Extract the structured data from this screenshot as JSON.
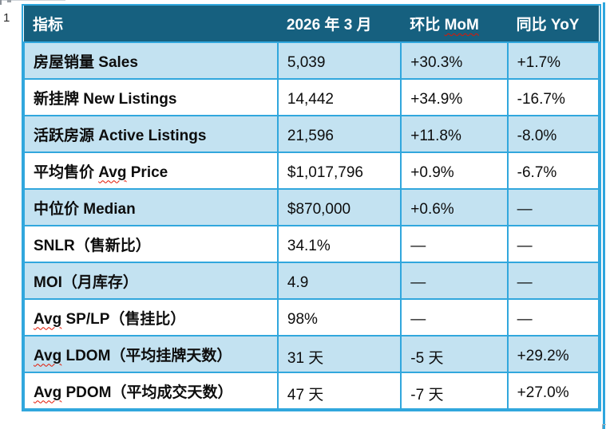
{
  "page": {
    "margin_number": "1"
  },
  "colors": {
    "header_bg": "#16607f",
    "header_text": "#ffffff",
    "row_alt_bg": "#c3e2f1",
    "row_bg": "#ffffff",
    "grid_border": "#31a7dd",
    "right_edge_strip": "#2ea6dd",
    "spellcheck_underline": "#e31400",
    "body_text": "#0d0d0d"
  },
  "table": {
    "headers": [
      {
        "pre": "指标",
        "wavy": "",
        "post": ""
      },
      {
        "pre": "2026 年 3 月",
        "wavy": "",
        "post": ""
      },
      {
        "pre": "环比 ",
        "wavy": "MoM",
        "post": ""
      },
      {
        "pre": "同比 YoY",
        "wavy": "",
        "post": ""
      }
    ],
    "rows": [
      {
        "label_pre": "房屋销量 Sales",
        "label_wavy": "",
        "label_post": "",
        "value": "5,039",
        "mom": "+30.3%",
        "yoy": "+1.7%"
      },
      {
        "label_pre": "新挂牌 New Listings",
        "label_wavy": "",
        "label_post": "",
        "value": "14,442",
        "mom": "+34.9%",
        "yoy": "-16.7%"
      },
      {
        "label_pre": "活跃房源 Active Listings",
        "label_wavy": "",
        "label_post": "",
        "value": "21,596",
        "mom": "+11.8%",
        "yoy": "-8.0%"
      },
      {
        "label_pre": "平均售价 ",
        "label_wavy": "Avg",
        "label_post": " Price",
        "value": "$1,017,796",
        "mom": "+0.9%",
        "yoy": "-6.7%"
      },
      {
        "label_pre": "中位价 Median",
        "label_wavy": "",
        "label_post": "",
        "value": "$870,000",
        "mom": "+0.6%",
        "yoy": "—"
      },
      {
        "label_pre": "SNLR（售新比）",
        "label_wavy": "",
        "label_post": "",
        "value": "34.1%",
        "mom": "—",
        "yoy": "—"
      },
      {
        "label_pre": "MOI（月库存）",
        "label_wavy": "",
        "label_post": "",
        "value": "4.9",
        "mom": "—",
        "yoy": "—"
      },
      {
        "label_pre": "",
        "label_wavy": "Avg",
        "label_post": " SP/LP（售挂比）",
        "value": "98%",
        "mom": "—",
        "yoy": "—"
      },
      {
        "label_pre": "",
        "label_wavy": "Avg",
        "label_post": " LDOM（平均挂牌天数）",
        "value": "31 天",
        "mom": "-5 天",
        "yoy": "+29.2%"
      },
      {
        "label_pre": "",
        "label_wavy": "Avg",
        "label_post": " PDOM（平均成交天数）",
        "value": "47 天",
        "mom": "-7 天",
        "yoy": "+27.0%"
      }
    ]
  }
}
